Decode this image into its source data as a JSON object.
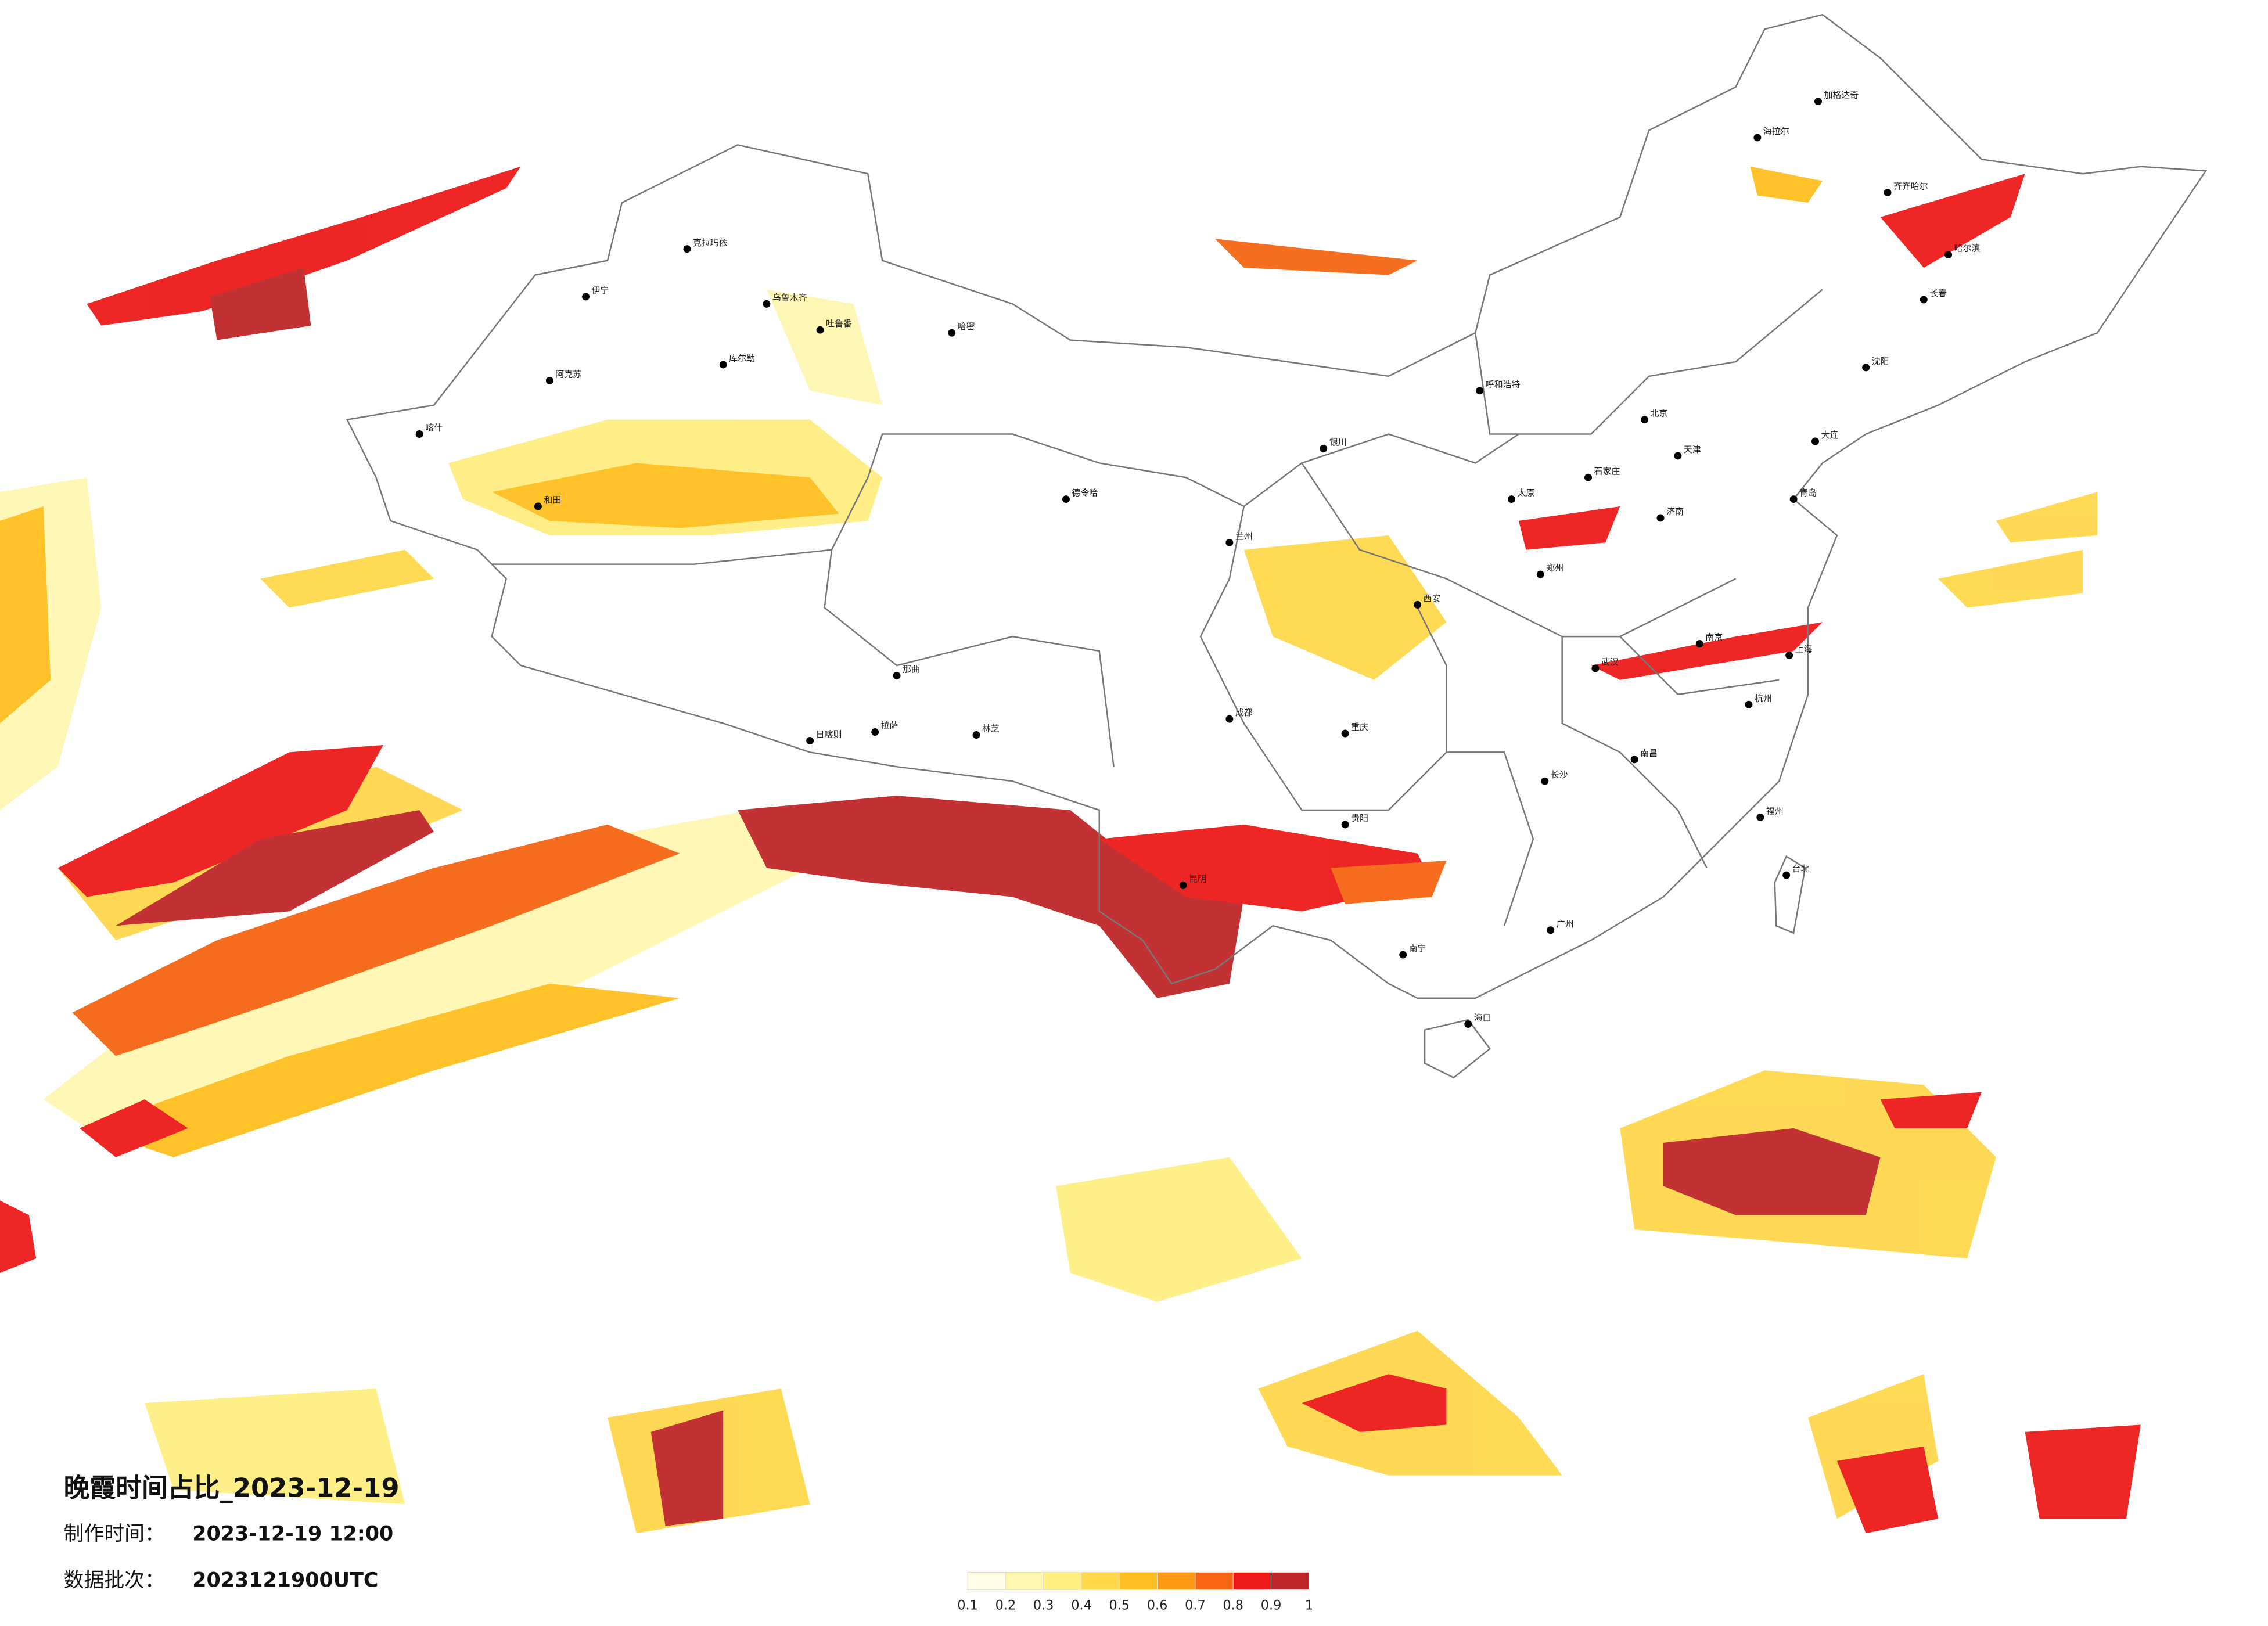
{
  "title": "晚霞时间占比_2023-12-19",
  "production_time": {
    "label": "制作时间：",
    "value": "2023-12-19 12:00"
  },
  "data_batch": {
    "label": "数据批次：",
    "value": "2023121900UTC"
  },
  "legend": {
    "ticks": [
      0.1,
      0.2,
      0.3,
      0.4,
      0.5,
      0.6,
      0.7,
      0.8,
      0.9,
      1
    ],
    "colors": [
      "#fffde6",
      "#fff7b2",
      "#ffee82",
      "#ffd84c",
      "#ffbf20",
      "#ff9b16",
      "#f66614",
      "#ee1a1a",
      "#bf2629"
    ]
  },
  "cities": [
    {
      "name": "克拉玛依"
    },
    {
      "name": "乌鲁木齐"
    },
    {
      "name": "吐鲁番"
    },
    {
      "name": "哈密"
    },
    {
      "name": "伊宁"
    },
    {
      "name": "阿克苏"
    },
    {
      "name": "喀什"
    },
    {
      "name": "和田"
    },
    {
      "name": "库尔勒"
    },
    {
      "name": "德令哈"
    },
    {
      "name": "拉萨"
    },
    {
      "name": "日喀则"
    },
    {
      "name": "林芝"
    },
    {
      "name": "那曲"
    },
    {
      "name": "呼和浩特"
    },
    {
      "name": "北京"
    },
    {
      "name": "天津"
    },
    {
      "name": "石家庄"
    },
    {
      "name": "太原"
    },
    {
      "name": "济南"
    },
    {
      "name": "郑州"
    },
    {
      "name": "西安"
    },
    {
      "name": "兰州"
    },
    {
      "name": "银川"
    },
    {
      "name": "成都"
    },
    {
      "name": "重庆"
    },
    {
      "name": "武汉"
    },
    {
      "name": "长沙"
    },
    {
      "name": "南昌"
    },
    {
      "name": "杭州"
    },
    {
      "name": "南京"
    },
    {
      "name": "上海"
    },
    {
      "name": "福州"
    },
    {
      "name": "广州"
    },
    {
      "name": "南宁"
    },
    {
      "name": "昆明"
    },
    {
      "name": "贵阳"
    },
    {
      "name": "海口"
    },
    {
      "name": "台北"
    },
    {
      "name": "哈尔滨"
    },
    {
      "name": "长春"
    },
    {
      "name": "沈阳"
    },
    {
      "name": "大连"
    },
    {
      "name": "青岛"
    },
    {
      "name": "海拉尔"
    },
    {
      "name": "齐齐哈尔"
    },
    {
      "name": "加格达奇"
    }
  ]
}
